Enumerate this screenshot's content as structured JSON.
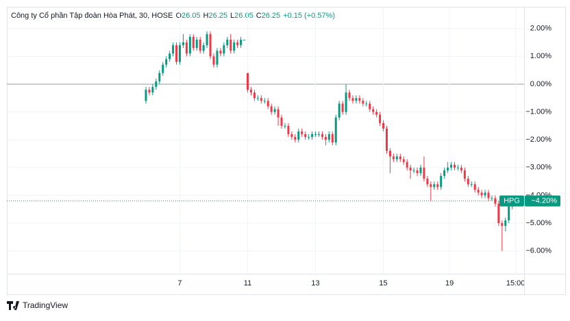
{
  "chart_data": {
    "type": "candlestick",
    "header": {
      "symbol": "Công ty Cổ phần Tập đoàn Hòa Phát, 30, HOSE",
      "ohlc": [
        {
          "label": "O",
          "value": "26.05"
        },
        {
          "label": "H",
          "value": "26.25"
        },
        {
          "label": "L",
          "value": "26.05"
        },
        {
          "label": "C",
          "value": "26.25"
        }
      ],
      "change": "+0.15 (+0.57%)"
    },
    "categories": [
      null,
      null,
      null,
      null,
      null,
      null,
      null,
      null,
      null,
      null,
      null,
      null,
      null,
      null,
      null,
      null,
      null,
      null,
      null,
      null,
      null,
      null,
      null,
      null,
      null,
      null,
      null,
      null,
      null,
      null,
      null,
      null,
      null,
      null,
      null,
      null,
      null,
      null,
      null,
      null,
      null,
      null,
      null,
      null,
      null,
      null,
      null,
      null,
      null,
      null,
      null,
      null,
      null,
      null,
      null,
      null,
      null,
      null,
      null,
      null,
      null,
      null,
      null,
      null,
      null,
      null,
      null,
      null,
      null,
      null,
      null,
      null,
      null,
      null,
      null,
      null,
      null,
      null,
      null,
      null,
      null,
      null,
      null,
      null,
      null,
      null,
      null,
      null,
      null,
      null,
      null,
      null,
      null,
      null,
      null,
      null,
      null,
      null,
      null,
      null,
      null,
      null,
      null,
      null,
      null,
      null,
      null,
      null,
      null
    ],
    "open": [
      -0.6,
      -0.2,
      -0.3,
      -0.1,
      0.1,
      0.4,
      0.7,
      0.9,
      1.1,
      1.4,
      0.8,
      1.4,
      1.5,
      1.1,
      1.7,
      1.3,
      1.6,
      1.2,
      1.4,
      1.8,
      1.0,
      0.7,
      1.2,
      1.1,
      1.4,
      1.6,
      1.2,
      1.5,
      1.4,
      1.6,
      0.4,
      -0.2,
      -0.3,
      -0.5,
      -0.5,
      -0.6,
      -0.6,
      -0.8,
      -1.0,
      -0.9,
      -1.2,
      -1.5,
      -1.5,
      -1.8,
      -1.9,
      -2.0,
      -1.7,
      -1.8,
      -1.9,
      -1.9,
      -1.8,
      -1.8,
      -1.8,
      -1.9,
      -2.0,
      -1.8,
      -2.1,
      -1.2,
      -0.7,
      -1.0,
      -0.3,
      -0.5,
      -0.6,
      -0.5,
      -0.6,
      -0.7,
      -0.7,
      -0.9,
      -1.0,
      -1.1,
      -1.4,
      -1.6,
      -2.4,
      -2.6,
      -2.7,
      -2.6,
      -2.7,
      -2.8,
      -3.0,
      -3.1,
      -3.1,
      -3.2,
      -3.0,
      -3.4,
      -3.6,
      -3.7,
      -3.6,
      -3.7,
      -3.3,
      -3.1,
      -3.0,
      -2.9,
      -3.0,
      -3.0,
      -3.1,
      -3.4,
      -3.6,
      -3.6,
      -3.8,
      -3.9,
      -4.0,
      -3.9,
      -4.1,
      -4.1,
      -4.3,
      -5.0,
      -5.1,
      -4.9,
      -4.4
    ],
    "high": [
      -0.1,
      -0.1,
      0.0,
      0.2,
      0.5,
      0.8,
      1.0,
      1.2,
      1.5,
      1.5,
      1.5,
      1.8,
      1.6,
      1.8,
      1.8,
      1.7,
      1.7,
      1.5,
      1.9,
      1.9,
      1.1,
      1.3,
      1.3,
      1.5,
      1.7,
      1.8,
      1.6,
      1.6,
      1.7,
      1.6,
      0.4,
      -0.1,
      -0.2,
      -0.4,
      -0.4,
      -0.5,
      -0.5,
      -0.7,
      -0.8,
      -0.8,
      -1.1,
      -1.4,
      -1.4,
      -1.7,
      -1.8,
      -1.6,
      -1.6,
      -1.7,
      -1.8,
      -1.7,
      -1.7,
      -1.7,
      -1.7,
      -1.8,
      -1.7,
      -1.7,
      -1.1,
      -0.6,
      -0.6,
      0.0,
      -0.2,
      -0.4,
      -0.4,
      -0.4,
      -0.5,
      -0.6,
      -0.6,
      -0.8,
      -0.9,
      -1.0,
      -1.3,
      -1.5,
      -2.3,
      -2.5,
      -2.5,
      -2.5,
      -2.6,
      -2.7,
      -2.9,
      -3.0,
      -3.0,
      -2.9,
      -2.6,
      -3.3,
      -3.5,
      -3.5,
      -3.5,
      -3.2,
      -3.0,
      -2.8,
      -2.8,
      -2.8,
      -2.9,
      -2.9,
      -3.0,
      -3.3,
      -3.5,
      -3.5,
      -3.7,
      -3.8,
      -3.8,
      -3.8,
      -4.0,
      -4.0,
      -4.2,
      -4.9,
      -4.8,
      -4.3,
      -4.1
    ],
    "low": [
      -0.7,
      -0.4,
      -0.4,
      -0.2,
      0.0,
      0.3,
      0.6,
      0.8,
      1.0,
      0.7,
      0.7,
      1.3,
      1.0,
      1.0,
      1.2,
      1.2,
      1.1,
      1.1,
      1.3,
      0.9,
      0.6,
      0.6,
      1.0,
      1.0,
      1.3,
      1.1,
      1.1,
      1.3,
      1.3,
      1.6,
      -0.3,
      -0.4,
      -0.6,
      -0.6,
      -0.7,
      -0.7,
      -0.9,
      -1.1,
      -1.1,
      -1.5,
      -1.6,
      -1.6,
      -1.9,
      -2.0,
      -2.1,
      -2.1,
      -1.9,
      -2.0,
      -2.0,
      -2.0,
      -1.9,
      -1.9,
      -2.0,
      -2.2,
      -2.1,
      -2.2,
      -2.2,
      -1.3,
      -1.1,
      -1.1,
      -0.6,
      -0.7,
      -0.7,
      -0.7,
      -0.8,
      -0.8,
      -1.0,
      -1.1,
      -1.2,
      -1.5,
      -1.7,
      -2.5,
      -3.2,
      -2.8,
      -2.8,
      -2.8,
      -2.9,
      -3.1,
      -3.4,
      -3.2,
      -3.3,
      -3.3,
      -3.5,
      -3.7,
      -4.2,
      -3.8,
      -3.8,
      -3.8,
      -3.4,
      -3.2,
      -3.1,
      -3.1,
      -3.1,
      -3.2,
      -3.5,
      -3.7,
      -3.7,
      -3.9,
      -4.0,
      -4.1,
      -4.1,
      -4.2,
      -4.2,
      -4.4,
      -5.1,
      -6.0,
      -5.3,
      -5.0,
      -4.5
    ],
    "close": [
      -0.2,
      -0.3,
      -0.1,
      0.1,
      0.4,
      0.7,
      0.9,
      1.1,
      1.4,
      0.8,
      1.4,
      1.5,
      1.1,
      1.7,
      1.3,
      1.6,
      1.2,
      1.4,
      1.8,
      1.0,
      0.7,
      1.2,
      1.1,
      1.4,
      1.6,
      1.2,
      1.5,
      1.4,
      1.6,
      1.6,
      -0.2,
      -0.3,
      -0.5,
      -0.5,
      -0.6,
      -0.6,
      -0.8,
      -1.0,
      -0.9,
      -1.2,
      -1.5,
      -1.5,
      -1.8,
      -1.9,
      -2.0,
      -1.7,
      -1.8,
      -1.9,
      -1.9,
      -1.8,
      -1.8,
      -1.8,
      -1.9,
      -2.0,
      -1.8,
      -2.1,
      -1.2,
      -0.7,
      -1.0,
      -0.3,
      -0.5,
      -0.6,
      -0.5,
      -0.6,
      -0.7,
      -0.7,
      -0.9,
      -1.0,
      -1.1,
      -1.4,
      -1.6,
      -2.4,
      -2.6,
      -2.7,
      -2.6,
      -2.7,
      -2.8,
      -3.0,
      -3.1,
      -3.1,
      -3.2,
      -3.0,
      -3.4,
      -3.6,
      -3.7,
      -3.6,
      -3.7,
      -3.3,
      -3.1,
      -3.0,
      -2.9,
      -3.0,
      -3.0,
      -3.1,
      -3.4,
      -3.6,
      -3.6,
      -3.8,
      -3.9,
      -4.0,
      -3.9,
      -4.1,
      -4.1,
      -4.3,
      -5.0,
      -5.1,
      -4.9,
      -4.4,
      -4.2
    ],
    "up_color": "#089981",
    "down_color": "#f23645",
    "xlim": [
      -41,
      111.5
    ],
    "xticks": [
      {
        "value": 10,
        "label": "7"
      },
      {
        "value": 30,
        "label": "11"
      },
      {
        "value": 50,
        "label": "13"
      },
      {
        "value": 70,
        "label": "15"
      },
      {
        "value": 89.5,
        "label": "19"
      },
      {
        "value": 109,
        "label": "15:00"
      }
    ],
    "ylim": [
      -6.82,
      2.78
    ],
    "yticks": [
      {
        "value": 2,
        "label": "2.00%"
      },
      {
        "value": 1,
        "label": "1.00%"
      },
      {
        "value": 0,
        "label": "0.00%"
      },
      {
        "value": -1,
        "label": "−1.00%"
      },
      {
        "value": -2,
        "label": "−2.00%"
      },
      {
        "value": -3,
        "label": "−3.00%"
      },
      {
        "value": -4,
        "label": "−4.00%"
      },
      {
        "value": -5,
        "label": "−5.00%"
      },
      {
        "value": -6,
        "label": "−6.00%"
      }
    ],
    "grid": true,
    "last_price": {
      "symbol": "HPG",
      "value": -4.2,
      "label": "−4.20%",
      "color": "#089981"
    },
    "brand": "TradingView"
  }
}
